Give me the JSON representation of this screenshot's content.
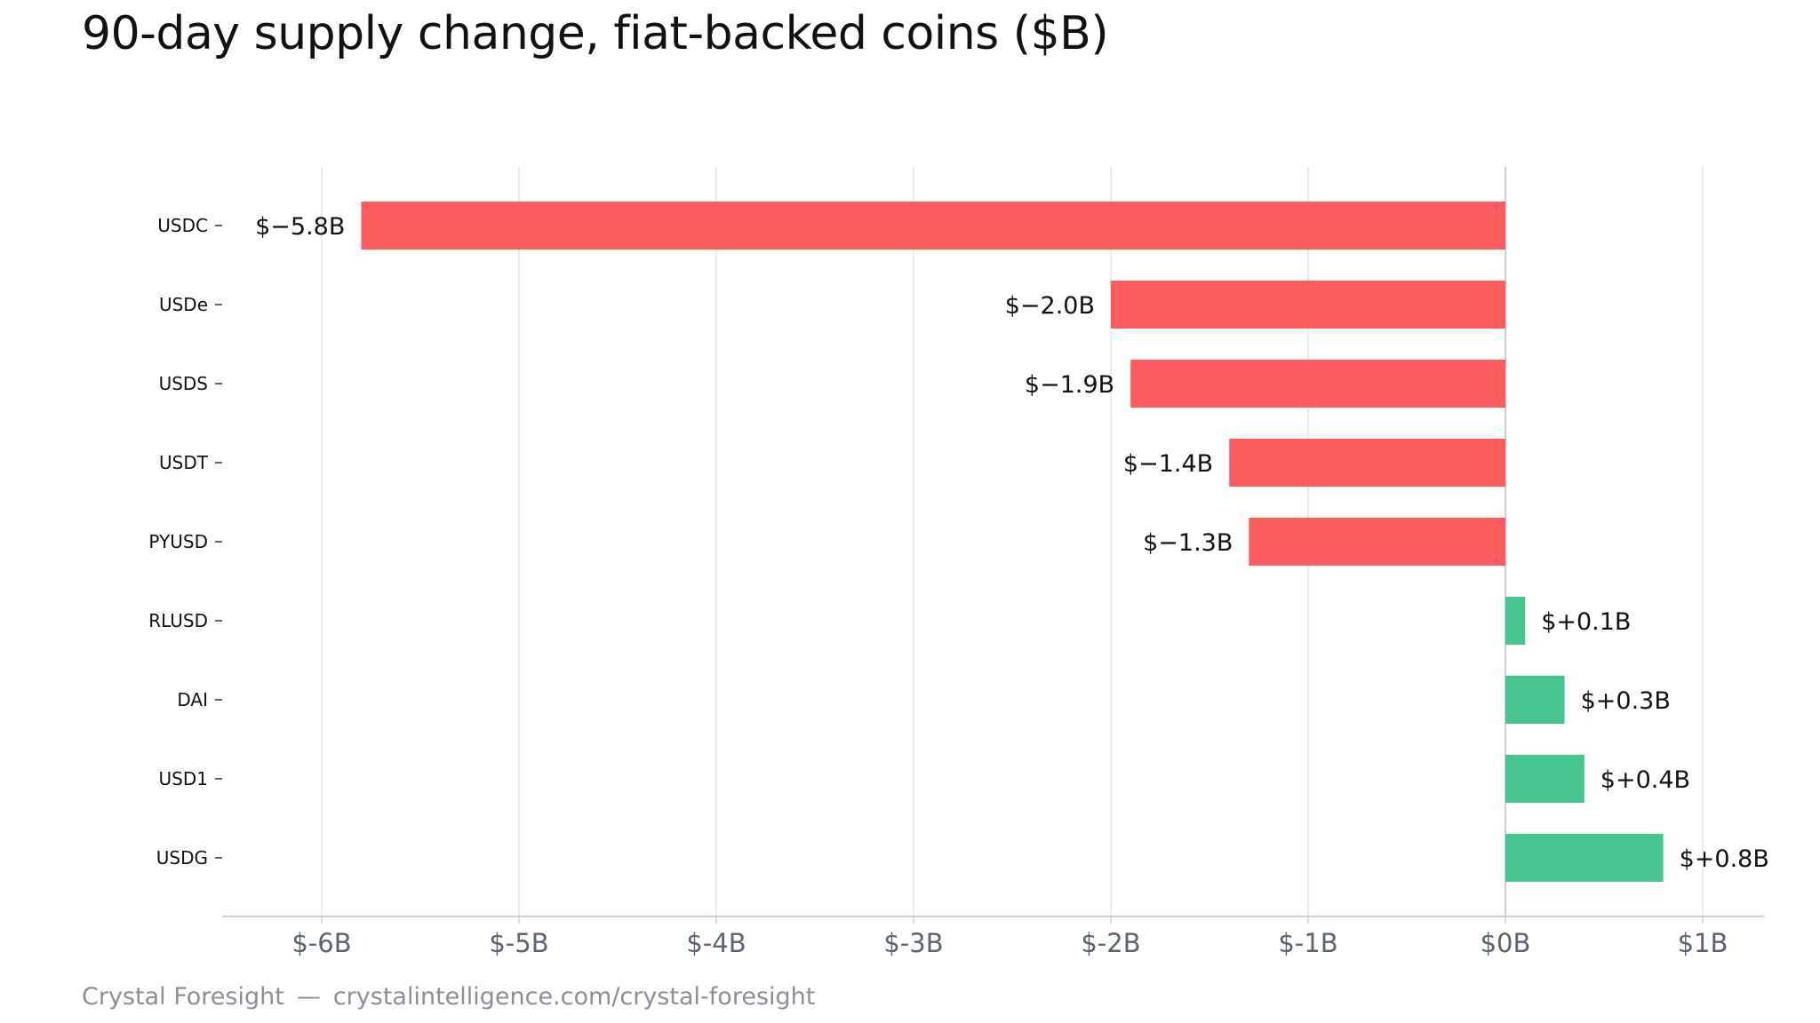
{
  "title": "90-day supply change, fiat-backed coins ($B)",
  "source": {
    "name": "Crystal Foresight",
    "separator": "—",
    "url": "crystalintelligence.com/crystal-foresight"
  },
  "colors": {
    "negative": "#fd5c5f",
    "positive": "#47c590",
    "grid": "#e6e6e6",
    "axis": "#cfcfcf"
  },
  "chart_data": {
    "type": "bar",
    "orientation": "horizontal",
    "categories": [
      "USDC",
      "USDe",
      "USDS",
      "USDT",
      "PYUSD",
      "RLUSD",
      "DAI",
      "USD1",
      "USDG"
    ],
    "values": [
      -5.8,
      -2.0,
      -1.9,
      -1.4,
      -1.3,
      0.1,
      0.3,
      0.4,
      0.8
    ],
    "data_labels": [
      "$−5.8B",
      "$−2.0B",
      "$−1.9B",
      "$−1.4B",
      "$−1.3B",
      "$+0.1B",
      "$+0.3B",
      "$+0.4B",
      "$+0.8B"
    ],
    "x_ticks": [
      -6,
      -5,
      -4,
      -3,
      -2,
      -1,
      0,
      1
    ],
    "x_tick_labels": [
      "$-6B",
      "$-5B",
      "$-4B",
      "$-3B",
      "$-2B",
      "$-1B",
      "$0B",
      "$1B"
    ],
    "xlim": [
      -6.5,
      1.3
    ],
    "title": "90-day supply change, fiat-backed coins ($B)",
    "xlabel": "",
    "ylabel": "",
    "grid": "vertical",
    "legend": "none"
  }
}
